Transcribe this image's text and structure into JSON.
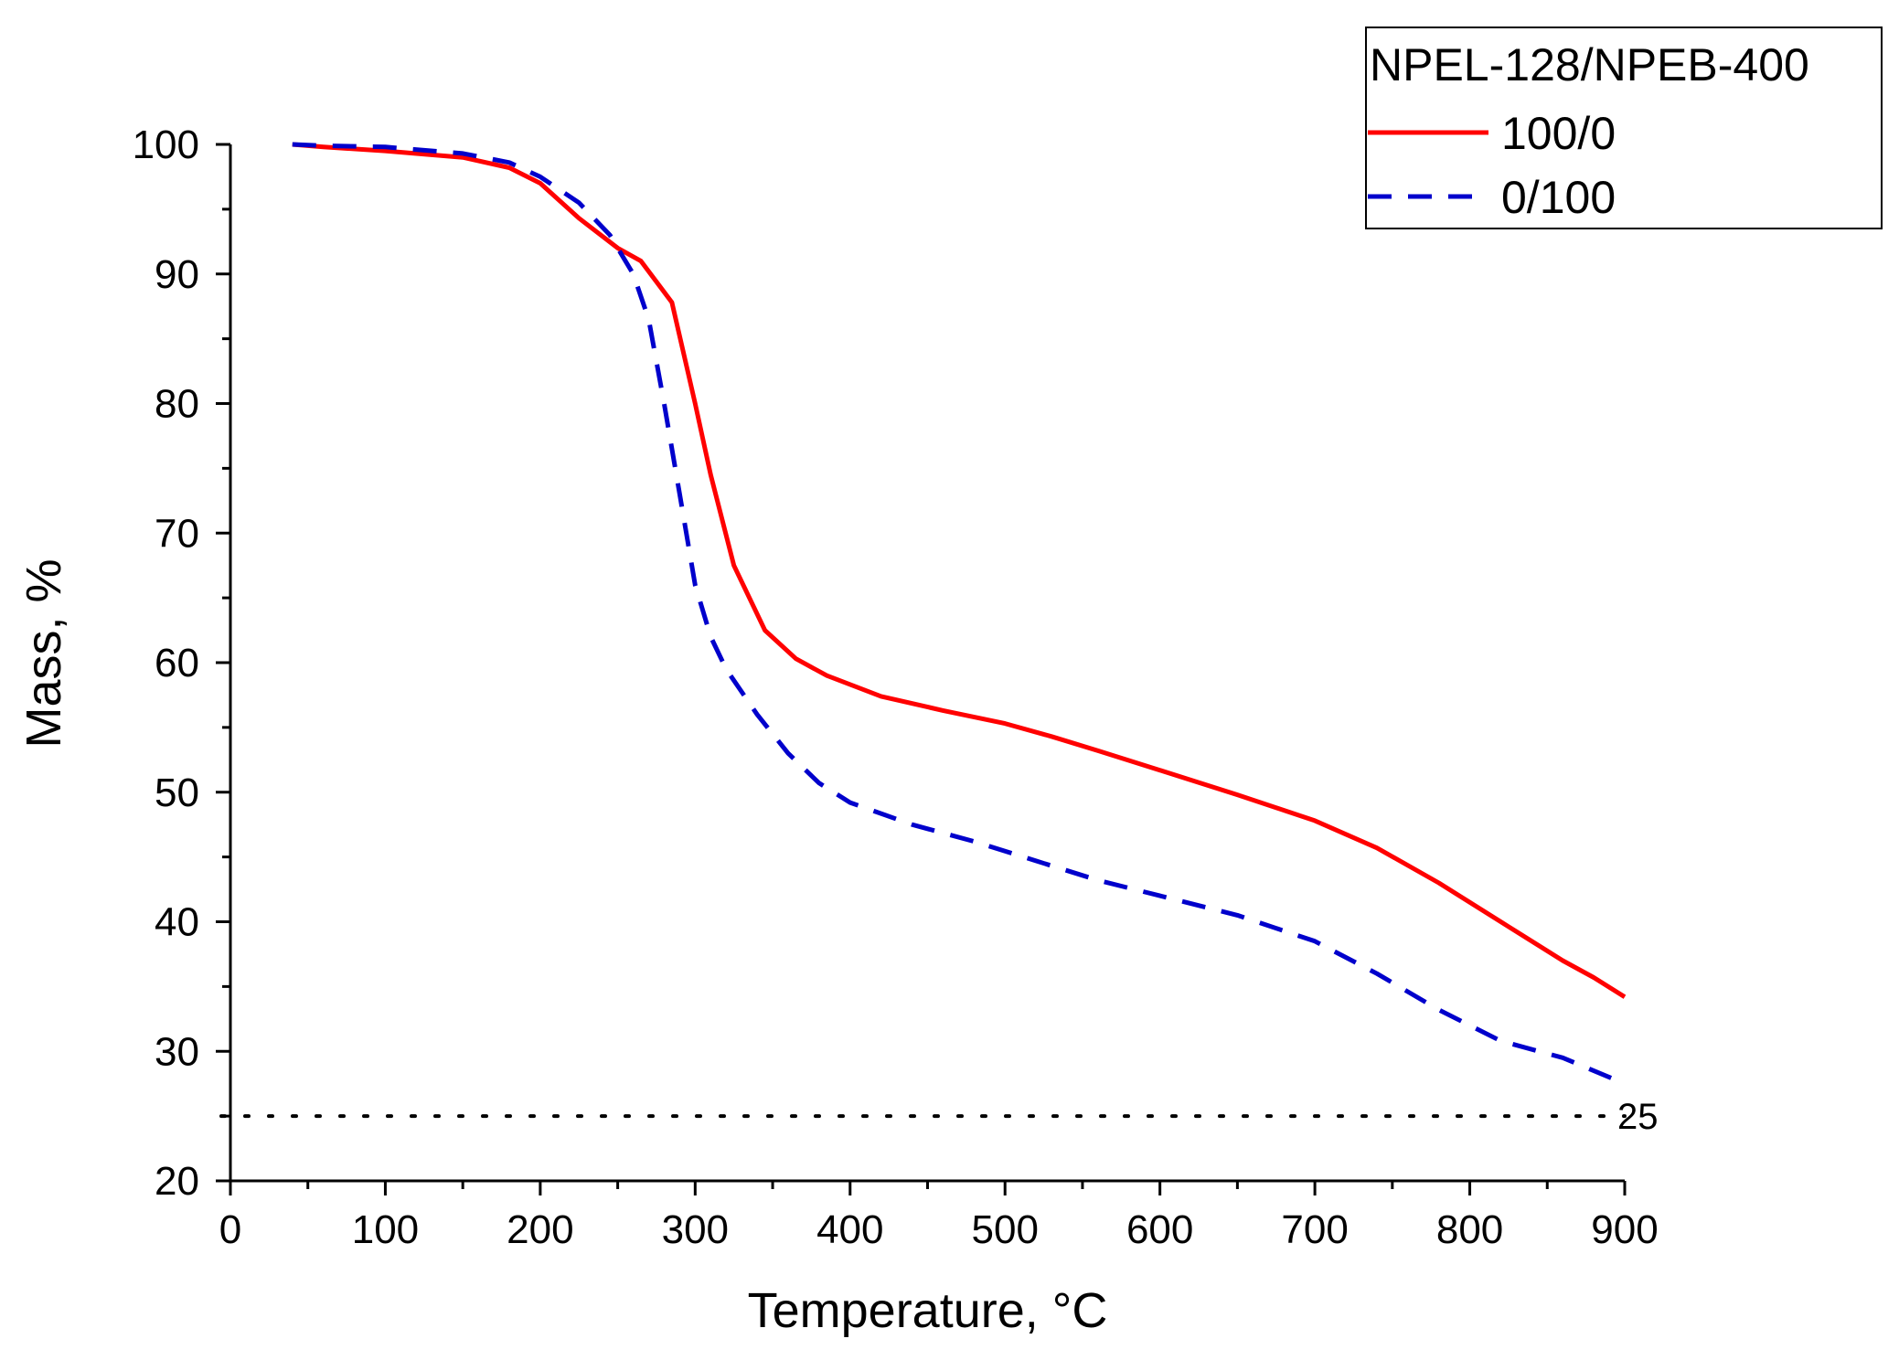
{
  "chart_data": {
    "type": "line",
    "xlabel": "Temperature, °C",
    "ylabel": "Mass, %",
    "xlim": [
      0,
      900
    ],
    "ylim": [
      20,
      100
    ],
    "x_ticks": [
      0,
      100,
      200,
      300,
      400,
      500,
      600,
      700,
      800,
      900
    ],
    "y_ticks": [
      20,
      30,
      40,
      50,
      60,
      70,
      80,
      90,
      100
    ],
    "grid": false,
    "legend": {
      "title": "NPEL-128/NPEB-400",
      "placement": "top-right"
    },
    "series": [
      {
        "name": "100/0",
        "color": "#ff0000",
        "style": "solid",
        "x": [
          40,
          60,
          100,
          150,
          180,
          200,
          225,
          250,
          265,
          285,
          300,
          310,
          325,
          345,
          365,
          385,
          420,
          460,
          500,
          530,
          560,
          600,
          650,
          700,
          740,
          780,
          820,
          860,
          880,
          900
        ],
        "y": [
          100,
          99.8,
          99.5,
          99.0,
          98.2,
          97.0,
          94.3,
          92.0,
          91.0,
          87.8,
          80.0,
          74.5,
          67.5,
          62.5,
          60.3,
          59.0,
          57.4,
          56.3,
          55.3,
          54.3,
          53.2,
          51.7,
          49.8,
          47.8,
          45.7,
          43.0,
          40.0,
          37.0,
          35.7,
          34.2
        ]
      },
      {
        "name": "0/100",
        "color": "#0000cc",
        "style": "dashed",
        "x": [
          40,
          60,
          100,
          150,
          180,
          200,
          225,
          245,
          260,
          270,
          280,
          290,
          300,
          310,
          320,
          340,
          360,
          380,
          400,
          440,
          480,
          520,
          560,
          600,
          650,
          700,
          740,
          780,
          820,
          860,
          900
        ],
        "y": [
          100,
          99.9,
          99.8,
          99.3,
          98.6,
          97.5,
          95.5,
          93.0,
          90.0,
          86.5,
          80.0,
          73.0,
          66.0,
          62.0,
          59.5,
          56.0,
          53.0,
          50.7,
          49.2,
          47.5,
          46.2,
          44.7,
          43.2,
          42.0,
          40.5,
          38.5,
          36.0,
          33.2,
          30.8,
          29.5,
          27.5
        ]
      }
    ],
    "reference_line": {
      "y": 25,
      "label": "25",
      "style": "dotted",
      "color": "#000000"
    }
  }
}
